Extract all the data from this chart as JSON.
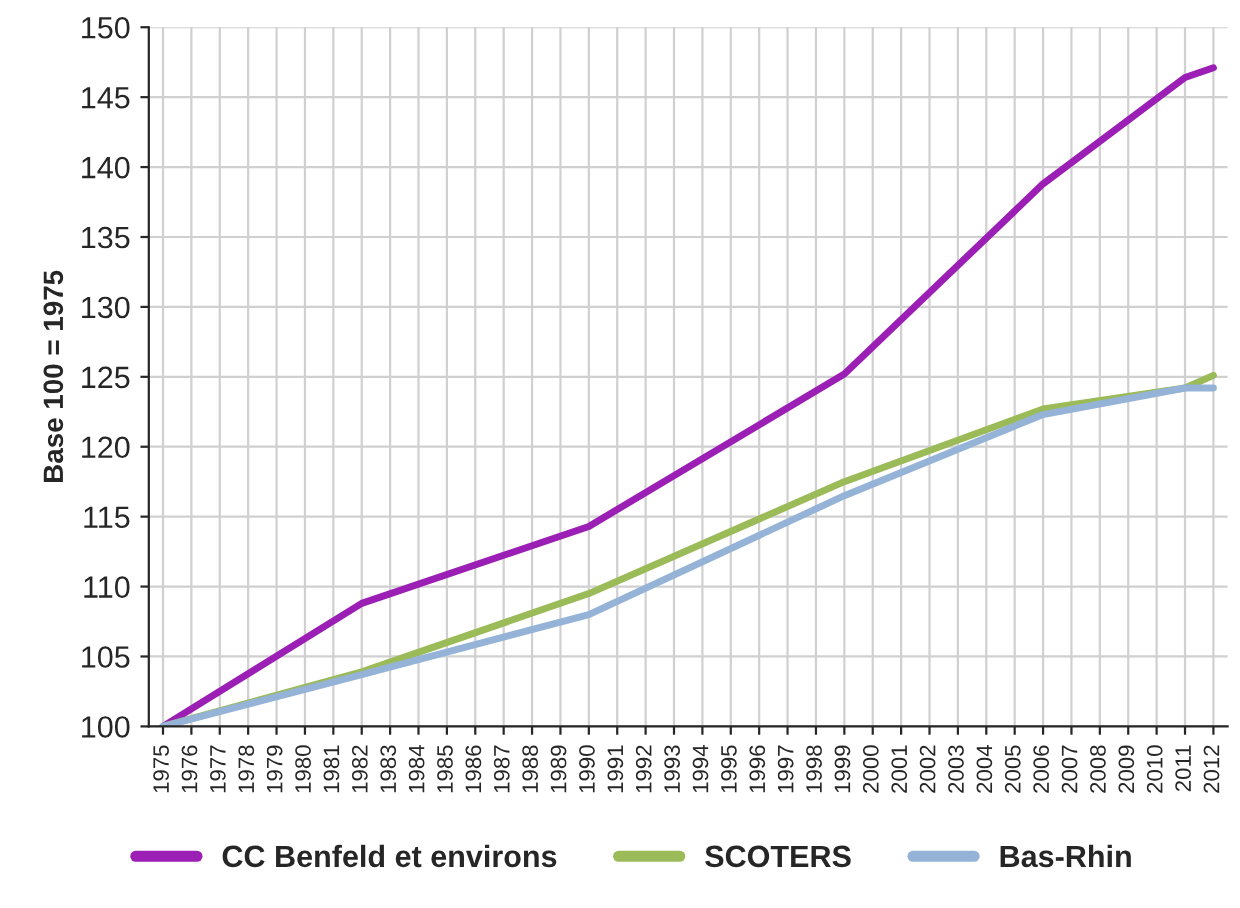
{
  "chart_data": {
    "type": "line",
    "ylabel": "Base 100 = 1975",
    "x": [
      1975,
      1982,
      1990,
      1999,
      2006,
      2011,
      2012
    ],
    "series": [
      {
        "name": "CC Benfeld et environs",
        "color": "#9b1fb5",
        "values": [
          100,
          108.8,
          114.3,
          125.2,
          138.8,
          146.4,
          147.1
        ]
      },
      {
        "name": "SCOTERS",
        "color": "#9bbb59",
        "values": [
          100,
          103.9,
          109.5,
          117.5,
          122.7,
          124.2,
          125.1
        ]
      },
      {
        "name": "Bas-Rhin",
        "color": "#95b3d7",
        "values": [
          100,
          103.7,
          108.0,
          116.5,
          122.3,
          124.2,
          124.2
        ]
      }
    ],
    "xlim": [
      1974.5,
      2012.5
    ],
    "xticks": [
      1975,
      1976,
      1977,
      1978,
      1979,
      1980,
      1981,
      1982,
      1983,
      1984,
      1985,
      1986,
      1987,
      1988,
      1989,
      1990,
      1991,
      1992,
      1993,
      1994,
      1995,
      1996,
      1997,
      1998,
      1999,
      2000,
      2001,
      2002,
      2003,
      2004,
      2005,
      2006,
      2007,
      2008,
      2009,
      2010,
      2011,
      2012
    ],
    "ylim": [
      100,
      150
    ],
    "yticks": [
      100,
      105,
      110,
      115,
      120,
      125,
      130,
      135,
      140,
      145,
      150
    ],
    "grid": true,
    "legend": "bottom",
    "marker": "none",
    "line_style": "solid"
  }
}
